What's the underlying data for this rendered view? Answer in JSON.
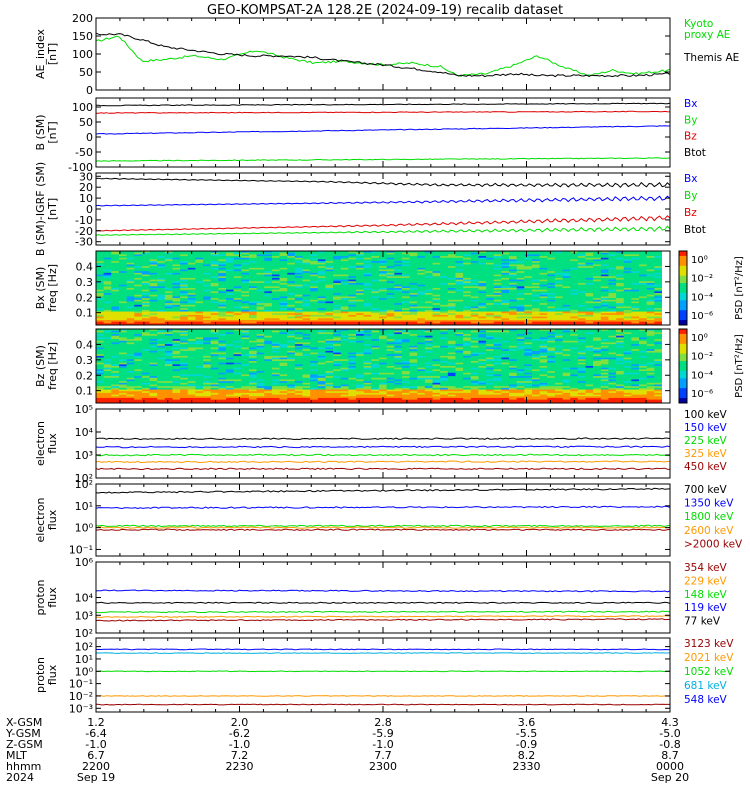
{
  "title": "GEO-KOMPSAT-2A 128.2E (2024-09-19) recalib dataset",
  "colors": {
    "black": "#000000",
    "blue": "#0000ff",
    "green": "#00dd00",
    "red": "#dd0000",
    "orange": "#ff9900",
    "darkred": "#990000",
    "cyan": "#00b0e0"
  },
  "chart_data": [
    {
      "id": "ae",
      "type": "line",
      "ylabel": "AE_index\n[nT]",
      "ylim": [
        0,
        200
      ],
      "yticks": [
        "200",
        "150",
        "100",
        "50",
        "0"
      ],
      "yticks_values": [
        200,
        150,
        100,
        50,
        0
      ],
      "series": [
        {
          "name": "Kyoto\nproxy AE",
          "color": "#00dd00",
          "x": [
            0,
            0.04,
            0.08,
            0.12,
            0.17,
            0.22,
            0.28,
            0.33,
            0.38,
            0.43,
            0.5,
            0.55,
            0.6,
            0.63,
            0.68,
            0.73,
            0.77,
            0.82,
            0.86,
            0.9,
            0.94,
            1.0
          ],
          "values": [
            135,
            150,
            80,
            85,
            95,
            85,
            110,
            90,
            75,
            80,
            70,
            75,
            65,
            40,
            45,
            70,
            95,
            60,
            40,
            55,
            45,
            55
          ]
        },
        {
          "name": "Themis AE",
          "color": "#000000",
          "x": [
            0,
            0.04,
            0.08,
            0.12,
            0.17,
            0.22,
            0.28,
            0.33,
            0.38,
            0.43,
            0.5,
            0.55,
            0.6,
            0.63,
            0.68,
            0.73,
            0.77,
            0.82,
            0.86,
            0.9,
            0.94,
            1.0
          ],
          "values": [
            155,
            155,
            140,
            120,
            110,
            100,
            95,
            95,
            90,
            80,
            70,
            60,
            50,
            40,
            40,
            45,
            40,
            40,
            40,
            40,
            40,
            45
          ]
        }
      ]
    },
    {
      "id": "bsm",
      "type": "line",
      "ylabel": "B (SM)\n[nT]",
      "ylim": [
        -100,
        130
      ],
      "yticks": [
        "100",
        "50",
        "0",
        "-50",
        "-100"
      ],
      "yticks_values": [
        100,
        50,
        0,
        -50,
        -100
      ],
      "series": [
        {
          "name": "Bx",
          "color": "#0000ff",
          "x": [
            0,
            1
          ],
          "values": [
            10,
            37
          ]
        },
        {
          "name": "By",
          "color": "#00dd00",
          "x": [
            0,
            1
          ],
          "values": [
            -80,
            -70
          ]
        },
        {
          "name": "Bz",
          "color": "#dd0000",
          "x": [
            0,
            1
          ],
          "values": [
            80,
            85
          ]
        },
        {
          "name": "Btot",
          "color": "#000000",
          "x": [
            0,
            1
          ],
          "values": [
            105,
            112
          ]
        }
      ]
    },
    {
      "id": "bigrf",
      "type": "line",
      "ylabel": "B (SM)-IGRF (SM)\n[nT]",
      "ylim": [
        -33,
        33
      ],
      "yticks": [
        "30",
        "20",
        "10",
        "0",
        "-10",
        "-20",
        "-30"
      ],
      "yticks_values": [
        30,
        20,
        10,
        0,
        -10,
        -20,
        -30
      ],
      "series": [
        {
          "name": "Bx",
          "color": "#0000ff",
          "x": [
            0,
            0.5,
            1
          ],
          "values": [
            3,
            6,
            10
          ]
        },
        {
          "name": "By",
          "color": "#00dd00",
          "x": [
            0,
            0.5,
            1
          ],
          "values": [
            -24,
            -21,
            -18
          ]
        },
        {
          "name": "Bz",
          "color": "#dd0000",
          "x": [
            0,
            0.5,
            1
          ],
          "values": [
            -20,
            -15,
            -8
          ]
        },
        {
          "name": "Btot",
          "color": "#000000",
          "x": [
            0,
            0.4,
            0.6,
            1
          ],
          "values": [
            28,
            25,
            22,
            22
          ]
        }
      ]
    },
    {
      "id": "bxspec",
      "type": "heatmap",
      "ylabel": "Bx (SM)\nfreq [Hz]",
      "ylim": [
        0.02,
        0.5
      ],
      "yticks": [
        "0.4",
        "0.3",
        "0.2",
        "0.1"
      ],
      "yticks_values": [
        0.4,
        0.3,
        0.2,
        0.1
      ],
      "colorbar_label": "PSD [nT²/Hz]",
      "colorbar_ticks": [
        "10⁰",
        "10⁻²",
        "10⁻⁴",
        "10⁻⁶"
      ]
    },
    {
      "id": "bzspec",
      "type": "heatmap",
      "ylabel": "Bz (SM)\nfreq [Hz]",
      "ylim": [
        0.02,
        0.5
      ],
      "yticks": [
        "0.4",
        "0.3",
        "0.2",
        "0.1"
      ],
      "yticks_values": [
        0.4,
        0.3,
        0.2,
        0.1
      ],
      "colorbar_label": "PSD [nT²/Hz]",
      "colorbar_ticks": [
        "10⁰",
        "10⁻²",
        "10⁻⁴",
        "10⁻⁶"
      ]
    },
    {
      "id": "elec_low",
      "type": "line",
      "ylabel": "electron\nflux",
      "log": true,
      "ylim": [
        100,
        100000
      ],
      "yticks": [
        "10⁵",
        "10⁴",
        "10³",
        "10²"
      ],
      "yticks_values": [
        100000,
        10000,
        1000,
        100
      ],
      "series": [
        {
          "name": "100 keV",
          "color": "#000000",
          "x": [
            0,
            1
          ],
          "values": [
            5000,
            5200
          ]
        },
        {
          "name": "150 keV",
          "color": "#0000ff",
          "x": [
            0,
            1
          ],
          "values": [
            2200,
            2300
          ]
        },
        {
          "name": "225 keV",
          "color": "#00dd00",
          "x": [
            0,
            1
          ],
          "values": [
            1000,
            1000
          ]
        },
        {
          "name": "325 keV",
          "color": "#ff9900",
          "x": [
            0,
            1
          ],
          "values": [
            500,
            520
          ]
        },
        {
          "name": "450 keV",
          "color": "#990000",
          "x": [
            0,
            1
          ],
          "values": [
            250,
            250
          ]
        }
      ]
    },
    {
      "id": "elec_high",
      "type": "line",
      "ylabel": "electron\nflux",
      "log": true,
      "ylim": [
        0.05,
        100
      ],
      "yticks": [
        "10²",
        "10¹",
        "10⁰",
        "10⁻¹"
      ],
      "yticks_values": [
        100,
        10,
        1,
        0.1
      ],
      "series": [
        {
          "name": "700 keV",
          "color": "#000000",
          "x": [
            0,
            1
          ],
          "values": [
            40,
            60
          ]
        },
        {
          "name": "1350 keV",
          "color": "#0000ff",
          "x": [
            0,
            1
          ],
          "values": [
            8,
            9
          ]
        },
        {
          "name": "1800 keV",
          "color": "#00dd00",
          "x": [
            0,
            1
          ],
          "values": [
            1.2,
            1.2
          ]
        },
        {
          "name": "2600 keV",
          "color": "#ff9900",
          "x": [
            0,
            1
          ],
          "values": [
            1.0,
            1.0
          ]
        },
        {
          "name": ">2000 keV",
          "color": "#990000",
          "x": [
            0,
            1
          ],
          "values": [
            0.8,
            0.8
          ]
        }
      ]
    },
    {
      "id": "prot_low",
      "type": "line",
      "ylabel": "proton\nflux",
      "log": true,
      "ylim": [
        100,
        1000000
      ],
      "yticks": [
        "10⁶",
        "10⁴",
        "10³",
        "10²"
      ],
      "yticks_values": [
        1000000,
        10000,
        1000,
        100
      ],
      "series": [
        {
          "name": "354 keV",
          "color": "#990000",
          "x": [
            0,
            1
          ],
          "values": [
            500,
            600
          ]
        },
        {
          "name": "229 keV",
          "color": "#ff9900",
          "x": [
            0,
            1
          ],
          "values": [
            800,
            900
          ]
        },
        {
          "name": "148 keV",
          "color": "#00dd00",
          "x": [
            0,
            1
          ],
          "values": [
            1500,
            1600
          ]
        },
        {
          "name": "119 keV",
          "color": "#0000ff",
          "x": [
            0,
            1
          ],
          "values": [
            25000,
            22000
          ]
        },
        {
          "name": "77 keV",
          "color": "#000000",
          "x": [
            0,
            1
          ],
          "values": [
            5000,
            5000
          ]
        }
      ]
    },
    {
      "id": "prot_high",
      "type": "line",
      "ylabel": "proton\nflux",
      "log": true,
      "ylim": [
        0.0005,
        500
      ],
      "yticks": [
        "10²",
        "10¹",
        "10⁰",
        "10⁻¹",
        "10⁻²",
        "10⁻³"
      ],
      "yticks_values": [
        100,
        10,
        1,
        0.1,
        0.01,
        0.001
      ],
      "series": [
        {
          "name": "3123 keV",
          "color": "#990000",
          "x": [
            0,
            1
          ],
          "values": [
            0.002,
            0.002
          ]
        },
        {
          "name": "2021 keV",
          "color": "#ff9900",
          "x": [
            0,
            1
          ],
          "values": [
            0.01,
            0.01
          ]
        },
        {
          "name": "1052 keV",
          "color": "#00dd00",
          "x": [
            0,
            1
          ],
          "values": [
            1.0,
            1.0
          ]
        },
        {
          "name": "681 keV",
          "color": "#00b0e0",
          "x": [
            0,
            1
          ],
          "values": [
            30,
            30
          ]
        },
        {
          "name": "548 keV",
          "color": "#0000ff",
          "x": [
            0,
            1
          ],
          "values": [
            60,
            60
          ]
        }
      ]
    }
  ],
  "xaxis": {
    "labels": [
      "X-GSM",
      "Y-GSM",
      "Z-GSM",
      "MLT",
      "hhmm",
      "2024"
    ],
    "ticks": [
      {
        "frac": 0.0,
        "values": [
          "1.2",
          "-6.4",
          "-1.0",
          "6.7",
          "2200",
          "Sep 19"
        ]
      },
      {
        "frac": 0.25,
        "values": [
          "2.0",
          "-6.2",
          "-1.0",
          "7.2",
          "2230",
          ""
        ]
      },
      {
        "frac": 0.5,
        "values": [
          "2.8",
          "-5.9",
          "-1.0",
          "7.7",
          "2300",
          ""
        ]
      },
      {
        "frac": 0.75,
        "values": [
          "3.6",
          "-5.5",
          "-0.9",
          "8.2",
          "2330",
          ""
        ]
      },
      {
        "frac": 1.0,
        "values": [
          "4.3",
          "-5.0",
          "-0.8",
          "8.7",
          "0000",
          "Sep 20"
        ]
      }
    ]
  }
}
